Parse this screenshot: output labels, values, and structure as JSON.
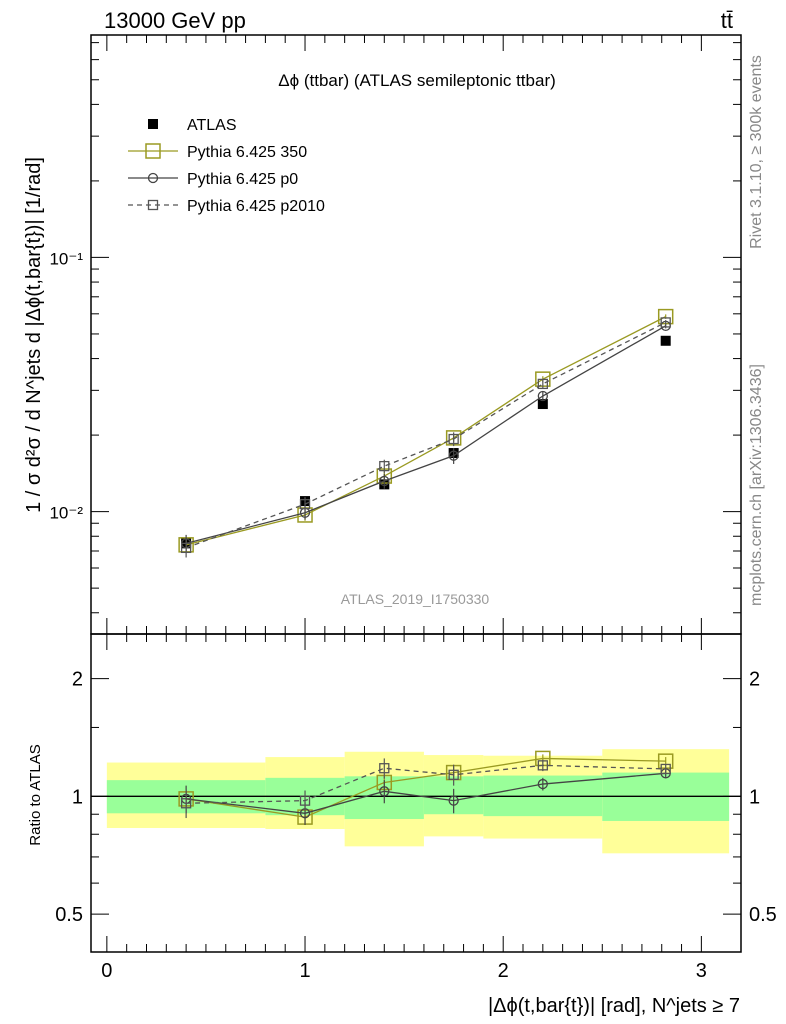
{
  "header": {
    "left_label": "13000 GeV pp",
    "right_label": "tt̄"
  },
  "side_labels": {
    "rivet": "Rivet 3.1.10, ≥ 300k events",
    "mcplots": "mcplots.cern.ch [arXiv:1306.3436]"
  },
  "analysis_id": "ATLAS_2019_I1750330",
  "colors": {
    "atlas": "#000000",
    "pythia_350": "#9a9a22",
    "pythia_p0": "#444444",
    "pythia_p2010": "#555555",
    "band_inner": "#99ff99",
    "band_outer": "#ffff99"
  },
  "chart_data": [
    {
      "type": "scatter",
      "panel": "main",
      "title": "Δϕ (ttbar) (ATLAS semileptonic ttbar)",
      "ylabel": "1 / σ d²σ / d N^jets d |Δϕ(t,bar{t})| [1/rad]",
      "ylim": [
        0.0033,
        0.75
      ],
      "yscale": "log",
      "xlim": [
        -0.08,
        3.2
      ],
      "y_ticks": [
        "10⁻²",
        "10⁻¹"
      ],
      "legend_placement": "top-left",
      "x": [
        0.4,
        1.0,
        1.4,
        1.75,
        2.2,
        2.82
      ],
      "series": [
        {
          "name": "ATLAS",
          "marker": "filled-square",
          "line": "none",
          "values": [
            0.0075,
            0.011,
            0.0128,
            0.017,
            0.0265,
            0.047
          ],
          "errors": [
            0.0003,
            0.0004,
            0.0005,
            0.0007,
            0.0009,
            0.0014
          ]
        },
        {
          "name": "Pythia 6.425 350",
          "marker": "open-square-large",
          "line": "solid",
          "values": [
            0.0074,
            0.0097,
            0.0138,
            0.0195,
            0.0332,
            0.0585
          ],
          "errors": [
            0.0004,
            0.0005,
            0.0006,
            0.0007,
            0.0009,
            0.0012
          ]
        },
        {
          "name": "Pythia 6.425 p0",
          "marker": "open-circle",
          "line": "solid",
          "values": [
            0.0075,
            0.0099,
            0.0132,
            0.0166,
            0.0285,
            0.0538
          ],
          "errors": [
            0.0006,
            0.0006,
            0.0009,
            0.0012,
            0.0012,
            0.0012
          ]
        },
        {
          "name": "Pythia 6.425 p2010",
          "marker": "open-square-small",
          "line": "dashed",
          "values": [
            0.0072,
            0.0107,
            0.0151,
            0.0193,
            0.0318,
            0.0555
          ],
          "errors": [
            0.0006,
            0.0007,
            0.0009,
            0.0012,
            0.0012,
            0.0012
          ]
        }
      ]
    },
    {
      "type": "scatter",
      "panel": "ratio",
      "ylabel": "Ratio to ATLAS",
      "xlabel": "|Δϕ(t,bar{t})| [rad], N^jets ≥ 7",
      "ylim": [
        0.4,
        2.6
      ],
      "yscale": "log",
      "xlim": [
        -0.08,
        3.2
      ],
      "x_ticks": [
        "0",
        "1",
        "2",
        "3"
      ],
      "y_ticks": [
        "0.5",
        "1",
        "2"
      ],
      "x": [
        0.4,
        1.0,
        1.4,
        1.75,
        2.2,
        2.82
      ],
      "bands": {
        "bins": [
          [
            0.0,
            0.8
          ],
          [
            0.8,
            1.2
          ],
          [
            1.2,
            1.6
          ],
          [
            1.6,
            1.9
          ],
          [
            1.9,
            2.5
          ],
          [
            2.5,
            3.14
          ]
        ],
        "inner_low": [
          0.905,
          0.895,
          0.875,
          0.9,
          0.89,
          0.865
        ],
        "inner_high": [
          1.1,
          1.115,
          1.125,
          1.125,
          1.13,
          1.15
        ],
        "outer_low": [
          0.83,
          0.825,
          0.745,
          0.79,
          0.78,
          0.715
        ],
        "outer_high": [
          1.22,
          1.26,
          1.3,
          1.275,
          1.27,
          1.32
        ]
      },
      "series": [
        {
          "name": "Pythia 6.425 350",
          "marker": "open-square-large",
          "line": "solid",
          "values": [
            0.985,
            0.885,
            1.085,
            1.15,
            1.25,
            1.23
          ],
          "errors": [
            0.04,
            0.04,
            0.04,
            0.04,
            0.03,
            0.03
          ]
        },
        {
          "name": "Pythia 6.425 p0",
          "marker": "open-circle",
          "line": "solid",
          "values": [
            0.985,
            0.905,
            1.03,
            0.975,
            1.075,
            1.145
          ],
          "errors": [
            0.08,
            0.06,
            0.07,
            0.07,
            0.04,
            0.03
          ]
        },
        {
          "name": "Pythia 6.425 p2010",
          "marker": "open-square-small",
          "line": "dashed",
          "values": [
            0.96,
            0.975,
            1.18,
            1.135,
            1.2,
            1.175
          ],
          "errors": [
            0.08,
            0.06,
            0.07,
            0.07,
            0.04,
            0.03
          ]
        }
      ]
    }
  ]
}
